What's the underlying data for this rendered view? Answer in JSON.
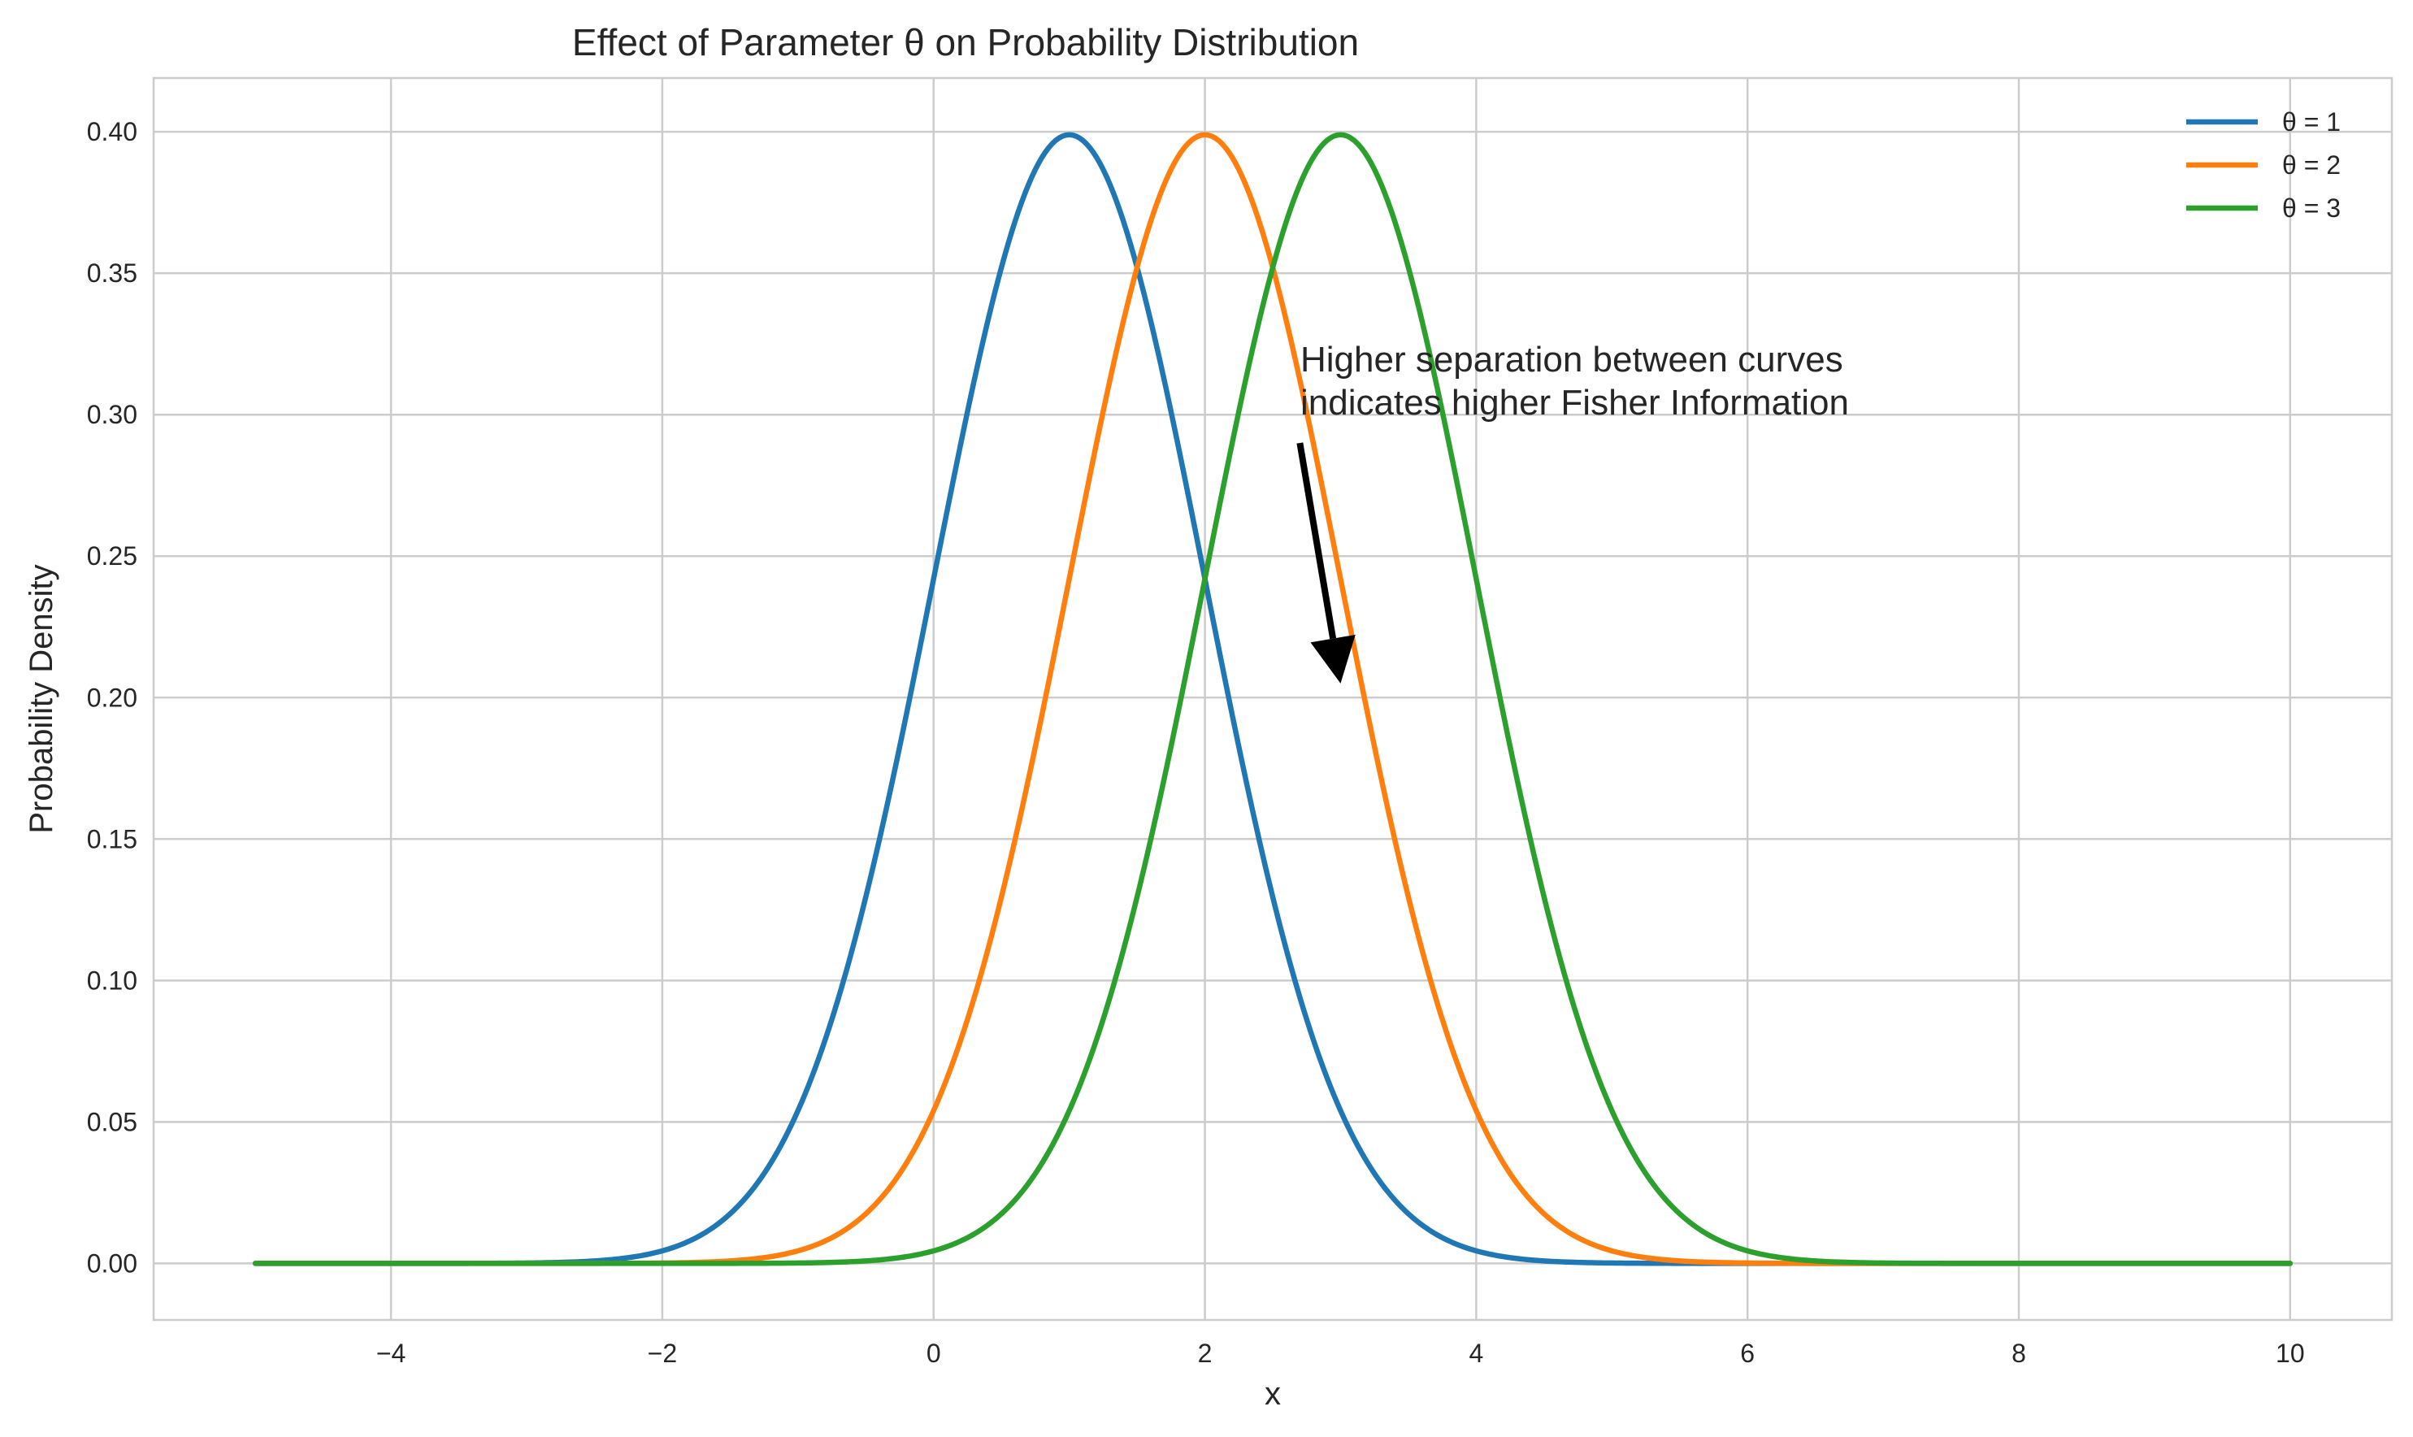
{
  "chart_data": {
    "type": "line",
    "title": "Effect of Parameter θ on Probability Distribution",
    "xlabel": "x",
    "ylabel": "Probability Density",
    "xlim": [
      -5.75,
      10.75
    ],
    "ylim": [
      -0.02,
      0.419
    ],
    "xticks": [
      -4,
      -2,
      0,
      2,
      4,
      6,
      8,
      10
    ],
    "xtick_labels": [
      "−4",
      "−2",
      "0",
      "2",
      "4",
      "6",
      "8",
      "10"
    ],
    "yticks": [
      0.0,
      0.05,
      0.1,
      0.15,
      0.2,
      0.25,
      0.3,
      0.35,
      0.4
    ],
    "ytick_labels": [
      "0.00",
      "0.05",
      "0.10",
      "0.15",
      "0.20",
      "0.25",
      "0.30",
      "0.35",
      "0.40"
    ],
    "grid": true,
    "legend_position": "top-right",
    "x_range": [
      -5,
      10
    ],
    "series": [
      {
        "name": "θ = 1",
        "color": "#1f77b4",
        "distribution": "normal",
        "mean": 1,
        "std": 1
      },
      {
        "name": "θ = 2",
        "color": "#ff7f0e",
        "distribution": "normal",
        "mean": 2,
        "std": 1
      },
      {
        "name": "θ = 3",
        "color": "#2ca02c",
        "distribution": "normal",
        "mean": 3,
        "std": 1
      }
    ],
    "annotation": {
      "lines": [
        "Higher separation between curves",
        "indicates higher Fisher Information"
      ],
      "arrow_from": [
        2.7,
        0.29
      ],
      "arrow_to": [
        3.0,
        0.205
      ],
      "arrow_color": "#000000"
    }
  }
}
